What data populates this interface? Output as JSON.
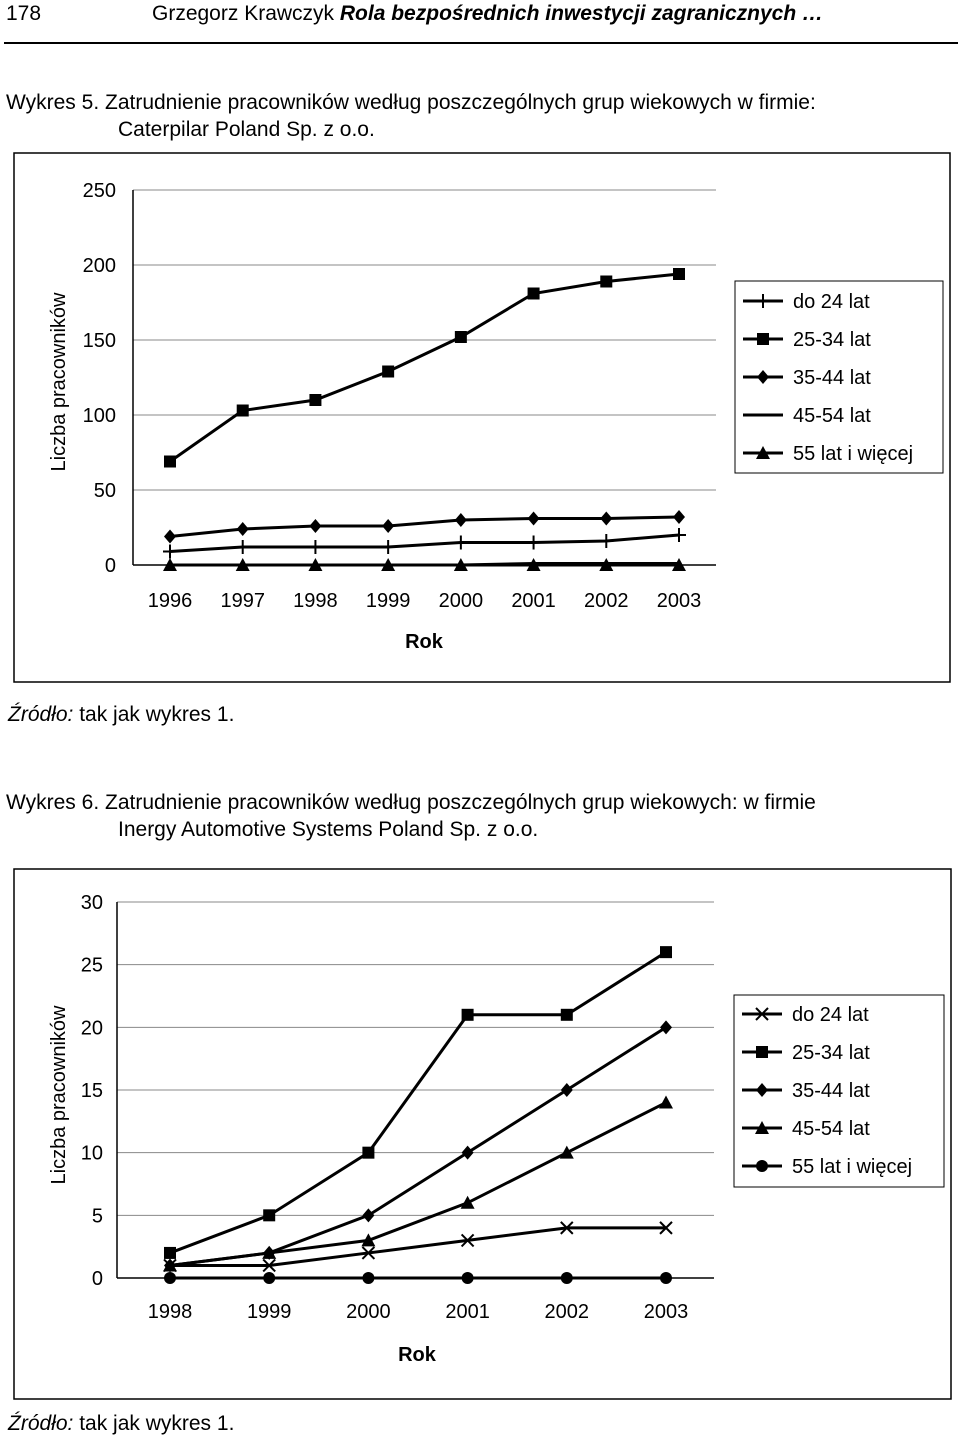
{
  "header": {
    "page_number": "178",
    "author": "Grzegorz Krawczyk",
    "title": "Rola bezpośrednich inwestycji zagranicznych …"
  },
  "charts": [
    {
      "caption_line1": "Wykres 5. Zatrudnienie pracowników według poszczególnych grup wiekowych w firmie:",
      "caption_line2": "Caterpilar Poland Sp. z o.o.",
      "source_label": "Źródło:",
      "source_text": " tak jak wykres 1."
    },
    {
      "caption_line1": "Wykres 6. Zatrudnienie pracowników według poszczególnych grup wiekowych: w firmie",
      "caption_line2": "Inergy Automotive Systems Poland Sp. z o.o.",
      "source_label": "Źródło:",
      "source_text": " tak jak wykres 1."
    }
  ],
  "chart_data": [
    {
      "type": "line",
      "title": "Wykres 5. Zatrudnienie pracowników według poszczególnych grup wiekowych w firmie: Caterpilar Poland Sp. z o.o.",
      "xlabel": "Rok",
      "ylabel": "Liczba pracowników",
      "categories": [
        "1996",
        "1997",
        "1998",
        "1999",
        "2000",
        "2001",
        "2002",
        "2003"
      ],
      "ylim": [
        0,
        250
      ],
      "yticks": [
        0,
        50,
        100,
        150,
        200,
        250
      ],
      "grid": true,
      "legend": "right",
      "series": [
        {
          "name": "do 24 lat",
          "marker": "plus",
          "values": [
            9,
            12,
            12,
            12,
            15,
            15,
            16,
            20
          ]
        },
        {
          "name": "25-34 lat",
          "marker": "square",
          "values": [
            69,
            103,
            110,
            129,
            152,
            181,
            189,
            194
          ]
        },
        {
          "name": "35-44 lat",
          "marker": "diamond",
          "values": [
            19,
            24,
            26,
            26,
            30,
            31,
            31,
            32
          ]
        },
        {
          "name": "45-54 lat",
          "marker": "none",
          "values": [
            0,
            0,
            0,
            0,
            0,
            1,
            1,
            1
          ]
        },
        {
          "name": "55 lat i więcej",
          "marker": "triangle",
          "values": [
            0,
            0,
            0,
            0,
            0,
            0,
            0,
            0
          ]
        }
      ]
    },
    {
      "type": "line",
      "title": "Wykres 6. Zatrudnienie pracowników według poszczególnych grup wiekowych: w firmie Inergy Automotive Systems Poland Sp. z o.o.",
      "xlabel": "Rok",
      "ylabel": "Liczba pracowników",
      "categories": [
        "1998",
        "1999",
        "2000",
        "2001",
        "2002",
        "2003"
      ],
      "ylim": [
        0,
        30
      ],
      "yticks": [
        0,
        5,
        10,
        15,
        20,
        25,
        30
      ],
      "grid": true,
      "legend": "right",
      "series": [
        {
          "name": "do 24 lat",
          "marker": "x",
          "values": [
            1,
            1,
            2,
            3,
            4,
            4
          ]
        },
        {
          "name": "25-34 lat",
          "marker": "square",
          "values": [
            2,
            5,
            10,
            21,
            21,
            26
          ]
        },
        {
          "name": "35-44 lat",
          "marker": "diamond",
          "values": [
            1,
            2,
            5,
            10,
            15,
            20
          ]
        },
        {
          "name": "45-54 lat",
          "marker": "triangle",
          "values": [
            1,
            2,
            3,
            6,
            10,
            14
          ]
        },
        {
          "name": "55 lat i więcej",
          "marker": "circle",
          "values": [
            0,
            0,
            0,
            0,
            0,
            0
          ]
        }
      ]
    }
  ]
}
